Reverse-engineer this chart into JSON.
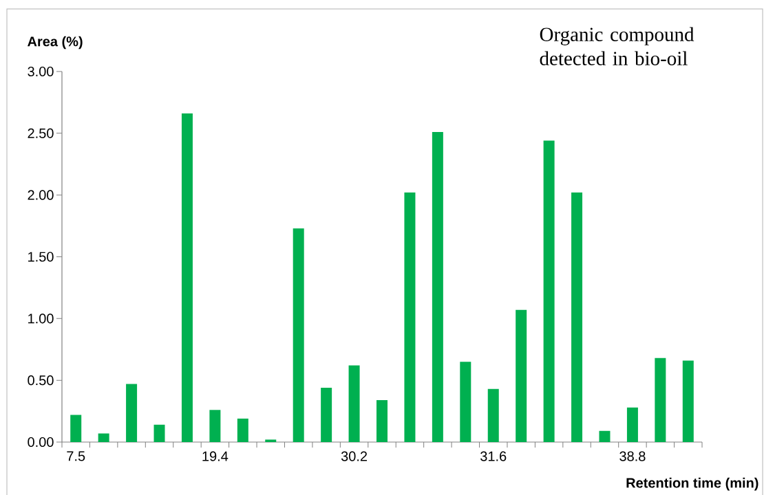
{
  "chart_data": {
    "type": "bar",
    "title": "Organic compound detected in bio-oil",
    "xlabel": "Retention time (min)",
    "ylabel": "Area (%)",
    "categories": [
      "7.5",
      null,
      null,
      null,
      null,
      "19.4",
      null,
      null,
      null,
      null,
      "30.2",
      null,
      null,
      null,
      null,
      "31.6",
      null,
      null,
      null,
      null,
      "38.8",
      null,
      null
    ],
    "values": [
      0.22,
      0.07,
      0.47,
      0.14,
      2.66,
      0.26,
      0.19,
      0.02,
      1.73,
      0.44,
      0.62,
      0.34,
      2.02,
      2.51,
      0.65,
      0.43,
      1.07,
      2.44,
      2.02,
      0.09,
      0.28,
      0.68,
      0.66
    ],
    "color": "#00b050",
    "ylim": [
      0,
      3
    ],
    "yticks": [
      {
        "value": 0,
        "label": "0.00"
      },
      {
        "value": 0.5,
        "label": "0.50"
      },
      {
        "value": 1,
        "label": "1.00"
      },
      {
        "value": 1.5,
        "label": "1.50"
      },
      {
        "value": 2,
        "label": "2.00"
      },
      {
        "value": 2.5,
        "label": "2.50"
      },
      {
        "value": 3,
        "label": "3.00"
      }
    ],
    "grid": false
  }
}
